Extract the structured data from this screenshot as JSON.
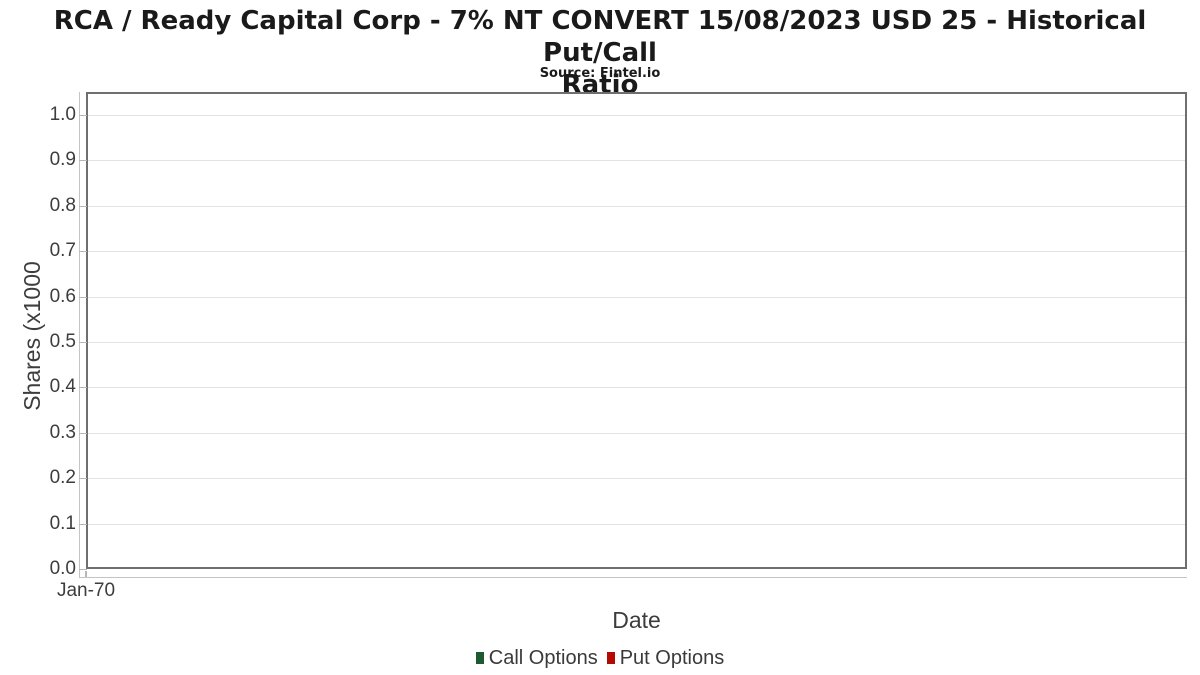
{
  "title": {
    "line1": "RCA / Ready Capital Corp - 7% NT CONVERT 15/08/2023 USD 25 - Historical Put/Call",
    "line2": "Ratio",
    "source": "Source: Fintel.io"
  },
  "axes": {
    "y_label": "Shares (x1000",
    "x_label": "Date",
    "y_ticks": [
      "1.0",
      "0.9",
      "0.8",
      "0.7",
      "0.6",
      "0.5",
      "0.4",
      "0.3",
      "0.2",
      "0.1",
      "0.0"
    ],
    "x_ticks": [
      "Jan-70"
    ]
  },
  "legend": {
    "items": [
      {
        "label": "Call Options",
        "color": "#1f5932"
      },
      {
        "label": "Put Options",
        "color": "#b30a02"
      }
    ]
  },
  "chart_data": {
    "type": "bar",
    "title": "RCA / Ready Capital Corp - 7% NT CONVERT 15/08/2023 USD 25 - Historical Put/Call Ratio",
    "subtitle": "Source: Fintel.io",
    "xlabel": "Date",
    "ylabel": "Shares (x1000",
    "ylim": [
      0.0,
      1.05
    ],
    "y_tick_step": 0.1,
    "x_tick_labels": [
      "Jan-70"
    ],
    "grid": "horizontal-only",
    "legend_position": "bottom-center",
    "series": [
      {
        "name": "Call Options",
        "color": "#1f5932",
        "x": [],
        "values": []
      },
      {
        "name": "Put Options",
        "color": "#b30a02",
        "x": [],
        "values": []
      }
    ]
  }
}
